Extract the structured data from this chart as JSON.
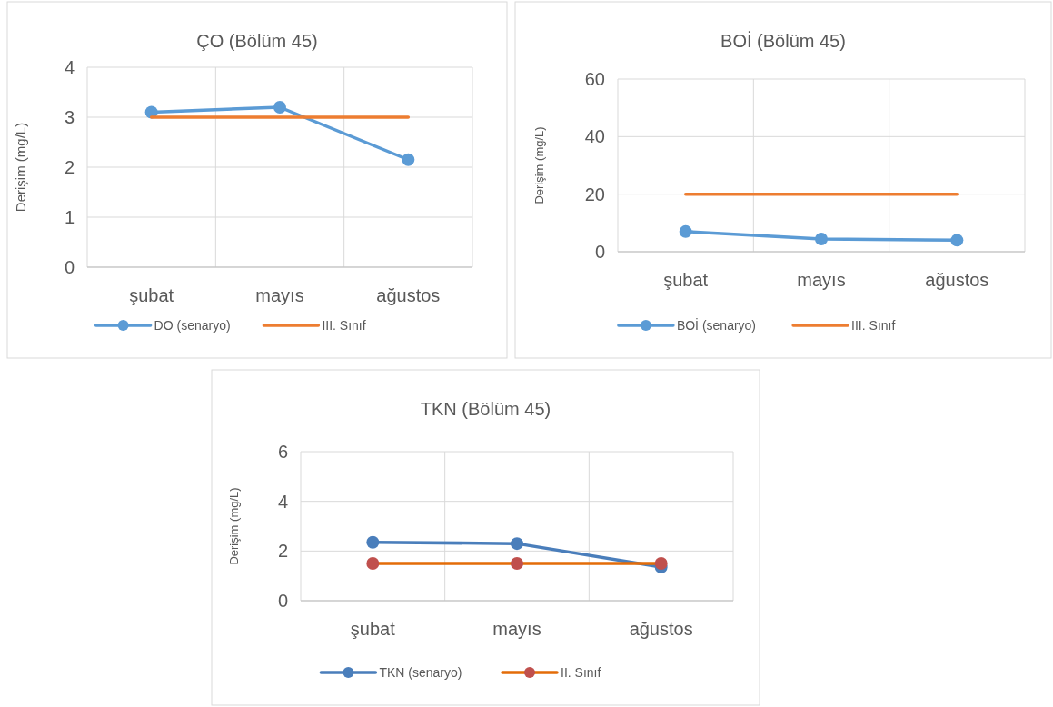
{
  "chart_data": [
    {
      "type": "line",
      "title": "ÇO (Bölüm 45)",
      "ylabel": "Derişim (mg/L)",
      "categories": [
        "şubat",
        "mayıs",
        "ağustos"
      ],
      "ylim": [
        0,
        4
      ],
      "yticks": [
        0,
        1,
        2,
        3,
        4
      ],
      "grid": true,
      "legend": "bottom",
      "series": [
        {
          "name": "DO (senaryo)",
          "color": "#5b9bd5",
          "values": [
            3.1,
            3.2,
            2.15
          ],
          "marker": "circle"
        },
        {
          "name": "III. Sınıf",
          "color": "#ed7d31",
          "values": [
            3,
            3,
            3
          ],
          "marker": "none"
        }
      ]
    },
    {
      "type": "line",
      "title": "BOİ (Bölüm 45)",
      "ylabel": "Derişim (mg/L)",
      "categories": [
        "şubat",
        "mayıs",
        "ağustos"
      ],
      "ylim": [
        0,
        60
      ],
      "yticks": [
        0,
        20,
        40,
        60
      ],
      "grid": true,
      "legend": "bottom",
      "series": [
        {
          "name": "BOİ (senaryo)",
          "color": "#5b9bd5",
          "values": [
            7,
            4.4,
            4
          ],
          "marker": "circle"
        },
        {
          "name": "III. Sınıf",
          "color": "#ed7d31",
          "values": [
            20,
            20,
            20
          ],
          "marker": "none"
        }
      ]
    },
    {
      "type": "line",
      "title": "TKN (Bölüm 45)",
      "ylabel": "Derişim (mg/L)",
      "categories": [
        "şubat",
        "mayıs",
        "ağustos"
      ],
      "ylim": [
        0,
        6
      ],
      "yticks": [
        0,
        2,
        4,
        6
      ],
      "grid": true,
      "legend": "bottom",
      "series": [
        {
          "name": "TKN  (senaryo)",
          "color": "#4a7ebb",
          "values": [
            2.35,
            2.3,
            1.35
          ],
          "marker": "circle"
        },
        {
          "name": "II. Sınıf",
          "color": "#e36c09",
          "values": [
            1.5,
            1.5,
            1.5
          ],
          "marker": "circle",
          "colors": [
            "#c0504d",
            "#c0504d",
            "#c0504d"
          ]
        }
      ]
    }
  ]
}
